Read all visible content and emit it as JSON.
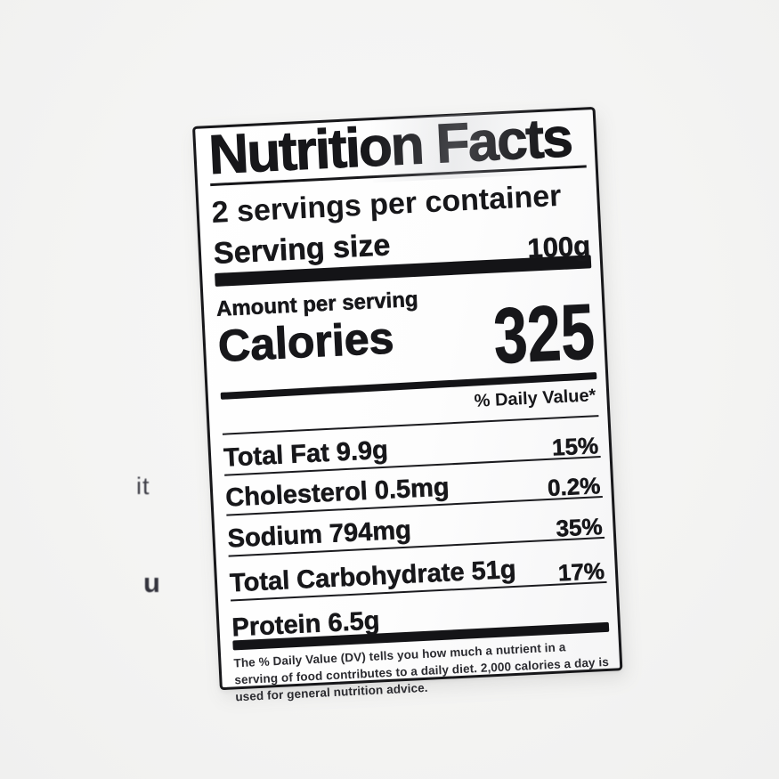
{
  "label": {
    "title": "Nutrition Facts",
    "servings_per_container": "2 servings per container",
    "serving_size_label": "Serving size",
    "serving_size_value": "100g",
    "amount_per_serving": "Amount per serving",
    "calories_label": "Calories",
    "calories_value": "325",
    "daily_value_header": "% Daily Value*",
    "rows": [
      {
        "name": "Total Fat 9.9g",
        "dv": "15%"
      },
      {
        "name": "Cholesterol 0.5mg",
        "dv": "0.2%"
      },
      {
        "name": "Sodium 794mg",
        "dv": "35%"
      },
      {
        "name": "Total Carbohydrate 51g",
        "dv": "17%"
      },
      {
        "name": "Protein 6.5g",
        "dv": ""
      }
    ],
    "footnote": "The % Daily Value (DV) tells you how much a nutrient in a serving of food contributes to a daily diet. 2,000 calories a day is used for general nutrition advice."
  },
  "background_fragments": [
    {
      "text": "it"
    },
    {
      "text": "u"
    }
  ],
  "colors": {
    "ink": "#17171a",
    "paper": "#fdfdfd",
    "page_background": "#f4f4f3",
    "fragment_ink": "#3d3d46"
  }
}
